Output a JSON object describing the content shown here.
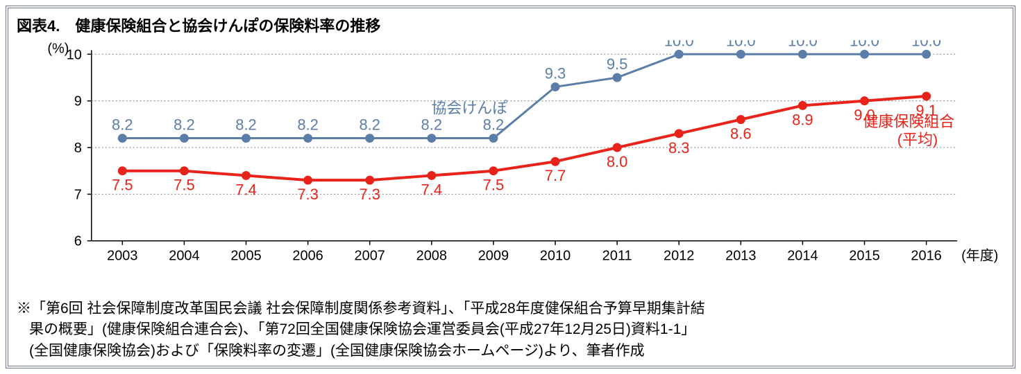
{
  "title": "図表4.　健康保険組合と協会けんぽの保険料率の推移",
  "chart": {
    "type": "line",
    "y_axis_label": "(%)",
    "x_axis_label": "(年度)",
    "categories": [
      "2003",
      "2004",
      "2005",
      "2006",
      "2007",
      "2008",
      "2009",
      "2010",
      "2011",
      "2012",
      "2013",
      "2014",
      "2015",
      "2016"
    ],
    "ylim": [
      6,
      10
    ],
    "ytick_step": 1,
    "axis_color": "#000000",
    "grid_color": "#808080",
    "background_color": "#ffffff",
    "tick_fontsize": 20,
    "label_fontsize": 22,
    "series": {
      "kyokai": {
        "name": "協会けんぽ",
        "color": "#5b7ea8",
        "marker": "circle",
        "marker_size": 6,
        "line_width": 3,
        "values": [
          8.2,
          8.2,
          8.2,
          8.2,
          8.2,
          8.2,
          8.2,
          9.3,
          9.5,
          10.0,
          10.0,
          10.0,
          10.0,
          10.0
        ],
        "labels": [
          "8.2",
          "8.2",
          "8.2",
          "8.2",
          "8.2",
          "8.2",
          "8.2",
          "9.3",
          "9.5",
          "10.0",
          "10.0",
          "10.0",
          "10.0",
          "10.0"
        ],
        "label_pos": [
          "above",
          "above",
          "above",
          "above",
          "above",
          "above",
          "above",
          "above",
          "above",
          "above",
          "above",
          "above",
          "above",
          "above"
        ],
        "legend_label": "協会けんぽ"
      },
      "kumiai": {
        "name": "健康保険組合(平均)",
        "color": "#e8231a",
        "marker": "circle",
        "marker_size": 6,
        "line_width": 4,
        "values": [
          7.5,
          7.5,
          7.4,
          7.3,
          7.3,
          7.4,
          7.5,
          7.7,
          8.0,
          8.3,
          8.6,
          8.9,
          9.0,
          9.1
        ],
        "labels": [
          "7.5",
          "7.5",
          "7.4",
          "7.3",
          "7.3",
          "7.4",
          "7.5",
          "7.7",
          "8.0",
          "8.3",
          "8.6",
          "8.9",
          "9.0",
          "9.1"
        ],
        "label_pos": [
          "below",
          "below",
          "below",
          "below",
          "below",
          "below",
          "below",
          "below",
          "below",
          "below",
          "below",
          "below",
          "below",
          "below"
        ],
        "legend_label_line1": "健康保険組合",
        "legend_label_line2": "(平均)"
      }
    }
  },
  "note_lines": [
    "※「第6回 社会保障制度改革国民会議 社会保障制度関係参考資料」、「平成28年度健保組合予算早期集計結",
    "果の概要」(健康保険組合連合会)、「第72回全国健康保険協会運営委員会(平成27年12月25日)資料1-1」",
    "(全国健康保険協会)および「保険料率の変遷」(全国健康保険協会ホームページ)より、筆者作成"
  ]
}
